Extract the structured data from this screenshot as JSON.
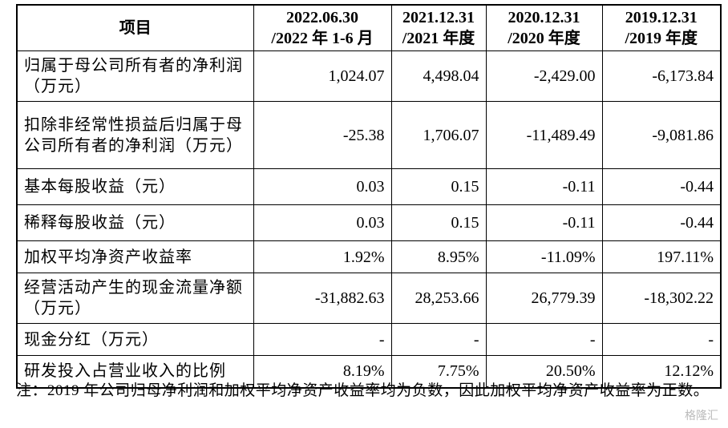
{
  "table": {
    "header": [
      "项目",
      [
        "2022.06.30",
        "/2022 年 1-6 月"
      ],
      [
        "2021.12.31",
        "/2021 年度"
      ],
      [
        "2020.12.31",
        "/2020 年度"
      ],
      [
        "2019.12.31",
        "/2019 年度"
      ]
    ],
    "rows": [
      [
        "归属于母公司所有者的净利润（万元）",
        "1,024.07",
        "4,498.04",
        "-2,429.00",
        "-6,173.84"
      ],
      [
        "扣除非经常性损益后归属于母公司所有者的净利润（万元）",
        "-25.38",
        "1,706.07",
        "-11,489.49",
        "-9,081.86"
      ],
      [
        "基本每股收益（元）",
        "0.03",
        "0.15",
        "-0.11",
        "-0.44"
      ],
      [
        "稀释每股收益（元）",
        "0.03",
        "0.15",
        "-0.11",
        "-0.44"
      ],
      [
        "加权平均净资产收益率",
        "1.92%",
        "8.95%",
        "-11.09%",
        "197.11%"
      ],
      [
        "经营活动产生的现金流量净额（万元）",
        "-31,882.63",
        "28,253.66",
        "26,779.39",
        "-18,302.22"
      ],
      [
        "现金分红（万元）",
        "-",
        "-",
        "-",
        "-"
      ],
      [
        "研发投入占营业收入的比例",
        "8.19%",
        "7.75%",
        "20.50%",
        "12.12%"
      ]
    ]
  },
  "note": "注：2019 年公司归母净利润和加权平均净资产收益率均为负数，因此加权平均净资产收益率为正数。",
  "watermark": "格隆汇"
}
